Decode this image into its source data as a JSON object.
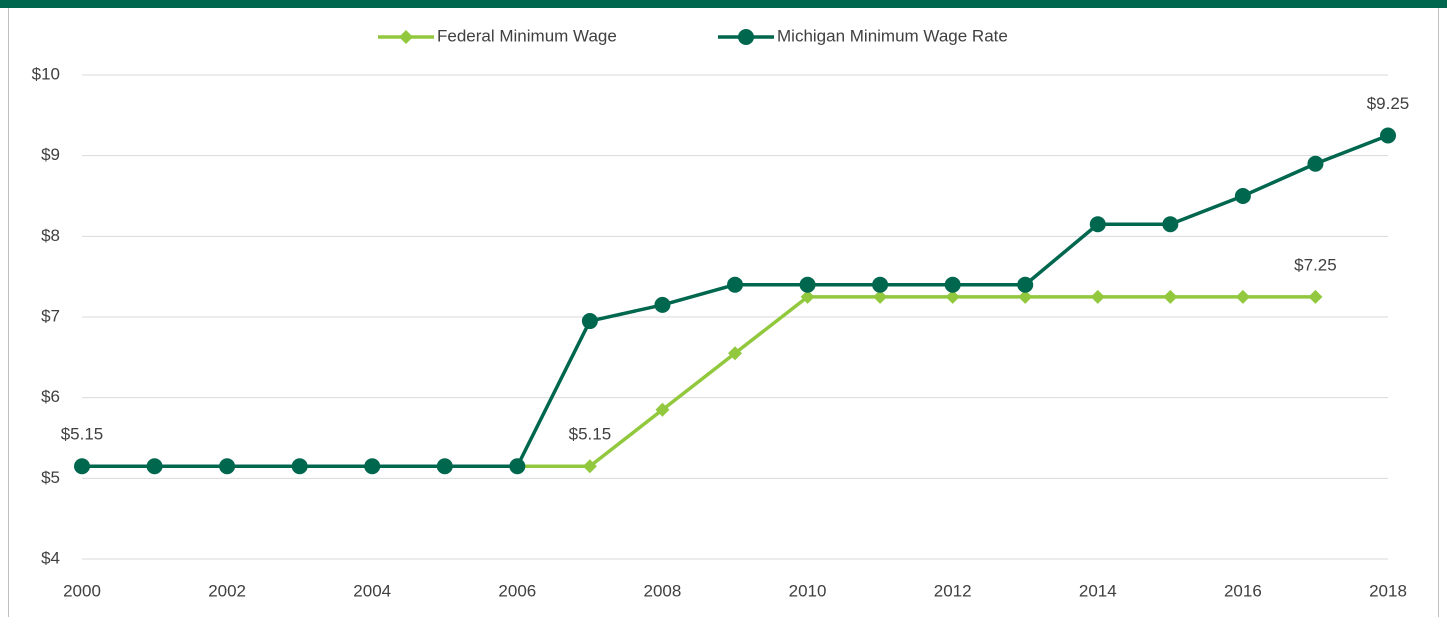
{
  "chart_data": {
    "type": "line",
    "x": [
      2000,
      2001,
      2002,
      2003,
      2004,
      2005,
      2006,
      2007,
      2008,
      2009,
      2010,
      2011,
      2012,
      2013,
      2014,
      2015,
      2016,
      2017,
      2018
    ],
    "series": [
      {
        "name": "Federal Minimum Wage",
        "color": "#92c83e",
        "marker": "diamond",
        "values": [
          5.15,
          5.15,
          5.15,
          5.15,
          5.15,
          5.15,
          5.15,
          5.15,
          5.85,
          6.55,
          7.25,
          7.25,
          7.25,
          7.25,
          7.25,
          7.25,
          7.25,
          7.25,
          null
        ],
        "value_labels": [
          null,
          null,
          null,
          null,
          null,
          null,
          null,
          "$5.15",
          null,
          null,
          null,
          null,
          null,
          null,
          null,
          null,
          null,
          "$7.25",
          null
        ]
      },
      {
        "name": "Michigan Minimum Wage Rate",
        "color": "#00674f",
        "marker": "circle",
        "values": [
          5.15,
          5.15,
          5.15,
          5.15,
          5.15,
          5.15,
          5.15,
          6.95,
          7.15,
          7.4,
          7.4,
          7.4,
          7.4,
          7.4,
          8.15,
          8.15,
          8.5,
          8.9,
          9.25
        ],
        "value_labels": [
          "$5.15",
          null,
          null,
          null,
          null,
          null,
          null,
          null,
          null,
          null,
          null,
          null,
          null,
          null,
          null,
          null,
          null,
          null,
          "$9.25"
        ]
      }
    ],
    "xlim": [
      2000,
      2018
    ],
    "xticks": [
      2000,
      2002,
      2004,
      2006,
      2008,
      2010,
      2012,
      2014,
      2016,
      2018
    ],
    "ylim": [
      4,
      10
    ],
    "yticks": [
      {
        "value": 4,
        "label": "$4"
      },
      {
        "value": 5,
        "label": "$5"
      },
      {
        "value": 6,
        "label": "$6"
      },
      {
        "value": 7,
        "label": "$7"
      },
      {
        "value": 8,
        "label": "$8"
      },
      {
        "value": 9,
        "label": "$9"
      },
      {
        "value": 10,
        "label": "$10"
      }
    ],
    "grid": true,
    "legend": "top"
  }
}
